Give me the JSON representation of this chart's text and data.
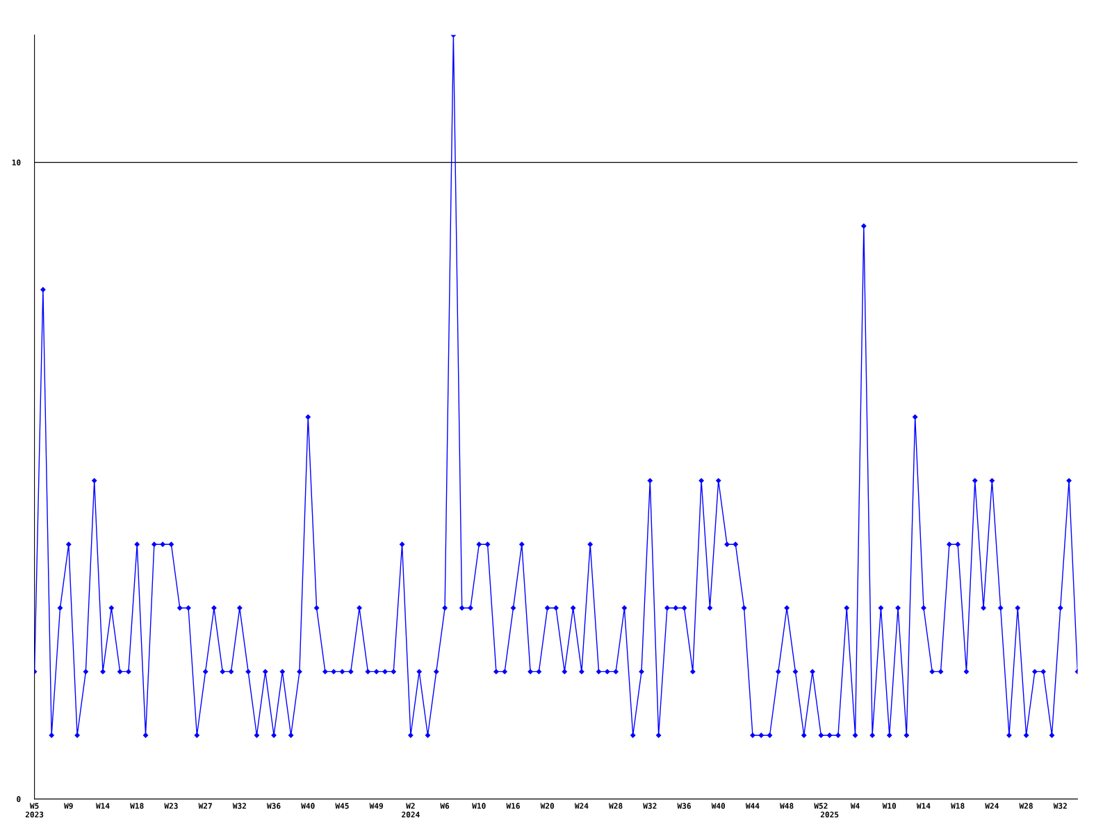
{
  "chart_data": {
    "type": "line",
    "categories": [
      "W5\n2023",
      null,
      null,
      null,
      "W9",
      null,
      null,
      null,
      "W14",
      null,
      null,
      null,
      "W18",
      null,
      null,
      null,
      "W23",
      null,
      null,
      null,
      "W27",
      null,
      null,
      null,
      "W32",
      null,
      null,
      null,
      "W36",
      null,
      null,
      null,
      "W40",
      null,
      null,
      null,
      "W45",
      null,
      null,
      null,
      "W49",
      null,
      null,
      null,
      "W2\n2024",
      null,
      null,
      null,
      "W6",
      null,
      null,
      null,
      "W10",
      null,
      null,
      null,
      "W16",
      null,
      null,
      null,
      "W20",
      null,
      null,
      null,
      "W24",
      null,
      null,
      null,
      "W28",
      null,
      null,
      null,
      "W32",
      null,
      null,
      null,
      "W36",
      null,
      null,
      null,
      "W40",
      null,
      null,
      null,
      "W44",
      null,
      null,
      null,
      "W48",
      null,
      null,
      null,
      "W52",
      "\n2025",
      null,
      null,
      "W4",
      null,
      null,
      null,
      "W10",
      null,
      null,
      null,
      "W14",
      null,
      null,
      null,
      "W18",
      null,
      null,
      null,
      "W24",
      null,
      null,
      null,
      "W28",
      null,
      null,
      null,
      "W32",
      null,
      null
    ],
    "series": [
      {
        "color": "#0000ff",
        "values": [
          2,
          8,
          1,
          3,
          4,
          1,
          2,
          5,
          2,
          3,
          2,
          2,
          4,
          1,
          4,
          4,
          4,
          3,
          3,
          1,
          2,
          3,
          2,
          2,
          3,
          2,
          1,
          2,
          1,
          2,
          1,
          2,
          6,
          3,
          2,
          2,
          2,
          2,
          3,
          2,
          2,
          2,
          2,
          4,
          1,
          2,
          1,
          2,
          3,
          12,
          3,
          3,
          4,
          4,
          2,
          2,
          3,
          4,
          2,
          2,
          3,
          3,
          2,
          3,
          2,
          4,
          2,
          2,
          2,
          3,
          1,
          2,
          5,
          1,
          3,
          3,
          3,
          2,
          5,
          3,
          5,
          4,
          4,
          3,
          1,
          1,
          1,
          2,
          3,
          2,
          1,
          2,
          1,
          1,
          1,
          3,
          1,
          9,
          1,
          3,
          1,
          3,
          1,
          6,
          3,
          2,
          2,
          4,
          4,
          2,
          5,
          3,
          5,
          3,
          1,
          3,
          1,
          2,
          2,
          1,
          3,
          5,
          2
        ]
      }
    ],
    "ylim": [
      0,
      12
    ],
    "yticks": [
      0,
      10
    ],
    "grid": "y",
    "marker": "diamond",
    "line_style": "solid",
    "legend": false
  }
}
